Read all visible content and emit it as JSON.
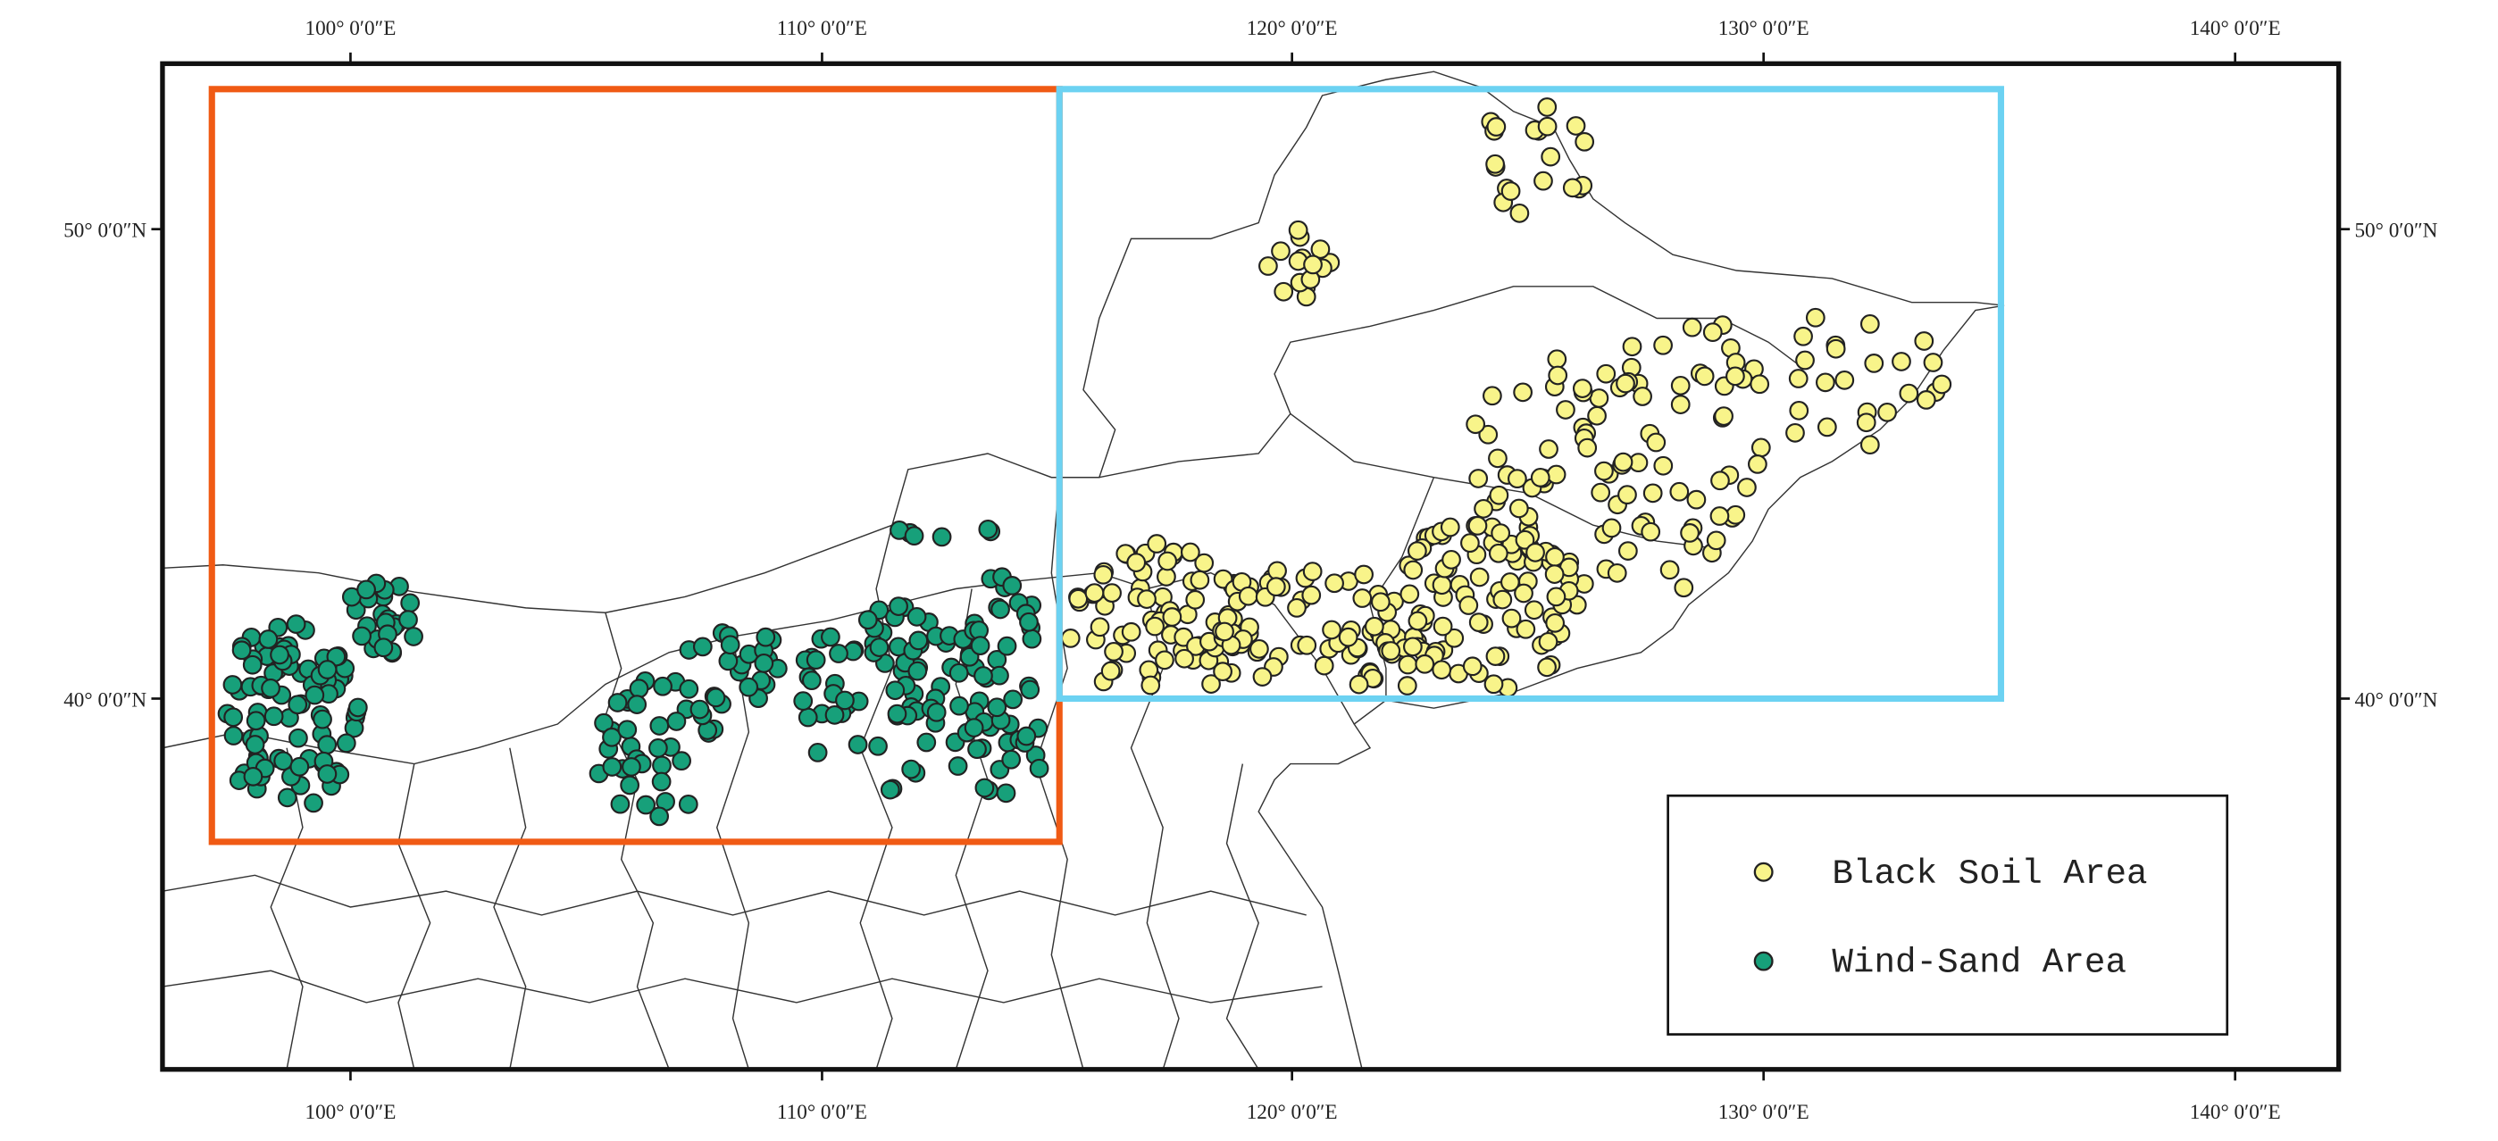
{
  "map": {
    "top_labels": [
      "100° 0′0″E",
      "110° 0′0″E",
      "120° 0′0″E",
      "130° 0′0″E",
      "140° 0′0″E"
    ],
    "bottom_labels": [
      "100° 0′0″E",
      "110° 0′0″E",
      "120° 0′0″E",
      "130° 0′0″E",
      "140° 0′0″E"
    ],
    "left_labels": [
      "50° 0′0″N",
      "40° 0′0″N"
    ],
    "right_labels": [
      "50° 0′0″N",
      "40° 0′0″N"
    ],
    "legend": [
      "Black Soil Area",
      "Wind-Sand Area"
    ]
  }
}
